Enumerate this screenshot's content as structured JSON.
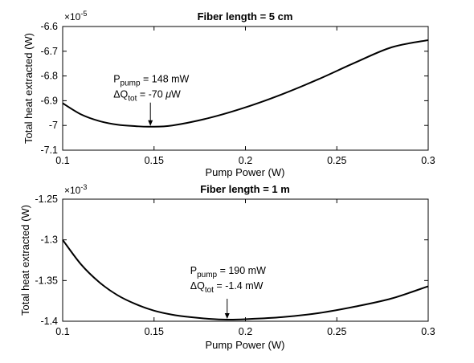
{
  "chart_data": [
    {
      "type": "line",
      "title": "Fiber length = 5 cm",
      "xlabel": "Pump Power (W)",
      "ylabel": "Total heat extracted (W)",
      "y_exponent": "-5",
      "xlim": [
        0.1,
        0.3
      ],
      "ylim": [
        -7.1,
        -6.6
      ],
      "xticks": [
        "0.1",
        "0.15",
        "0.2",
        "0.25",
        "0.3"
      ],
      "yticks": [
        "-7.1",
        "-7",
        "-6.9",
        "-6.8",
        "-6.7",
        "-6.6"
      ],
      "x": [
        0.1,
        0.11,
        0.12,
        0.13,
        0.14,
        0.148,
        0.16,
        0.18,
        0.2,
        0.22,
        0.24,
        0.26,
        0.28,
        0.3
      ],
      "y": [
        -6.91,
        -6.955,
        -6.982,
        -6.997,
        -7.003,
        -7.005,
        -7.0,
        -6.97,
        -6.927,
        -6.874,
        -6.813,
        -6.746,
        -6.684,
        -6.655
      ],
      "annotation": {
        "x": 0.148,
        "y": -7.005,
        "p_main": "P",
        "p_sub": "pump",
        "p_value": " = 148 mW",
        "q_main": "ΔQ",
        "q_sub": "tot",
        "q_value_pre": " = -70 ",
        "q_mu": "μ",
        "q_value_post": "W"
      }
    },
    {
      "type": "line",
      "title": "Fiber length = 1 m",
      "xlabel": "Pump Power (W)",
      "ylabel": "Total heat extracted (W)",
      "y_exponent": "-3",
      "xlim": [
        0.1,
        0.3
      ],
      "ylim": [
        -1.4,
        -1.25
      ],
      "xticks": [
        "0.1",
        "0.15",
        "0.2",
        "0.25",
        "0.3"
      ],
      "yticks": [
        "-1.4",
        "-1.35",
        "-1.3",
        "-1.25"
      ],
      "x": [
        0.1,
        0.11,
        0.12,
        0.13,
        0.14,
        0.15,
        0.16,
        0.17,
        0.18,
        0.19,
        0.2,
        0.22,
        0.24,
        0.26,
        0.28,
        0.3
      ],
      "y": [
        -1.3,
        -1.33,
        -1.352,
        -1.368,
        -1.379,
        -1.387,
        -1.392,
        -1.395,
        -1.397,
        -1.398,
        -1.3975,
        -1.395,
        -1.39,
        -1.382,
        -1.372,
        -1.357
      ],
      "annotation": {
        "x": 0.19,
        "y": -1.398,
        "p_main": "P",
        "p_sub": "pump",
        "p_value": " = 190 mW",
        "q_main": "ΔQ",
        "q_sub": "tot",
        "q_value_pre": " = -1.4 mW",
        "q_mu": "",
        "q_value_post": ""
      }
    }
  ]
}
